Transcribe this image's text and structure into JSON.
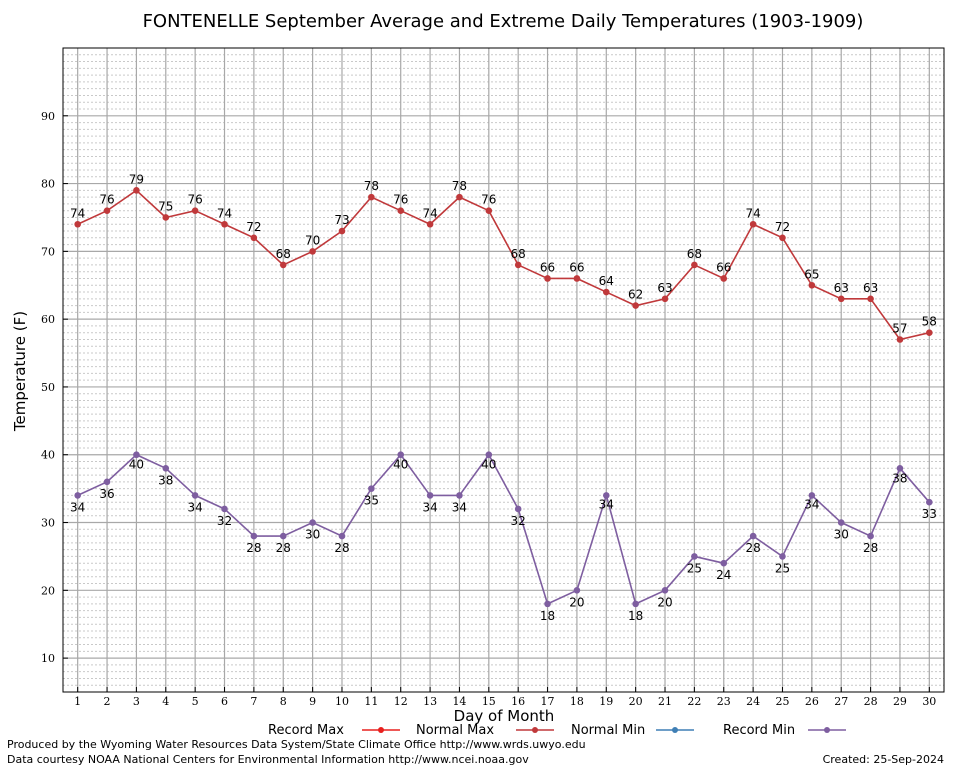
{
  "chart_data": {
    "type": "line",
    "title": "FONTENELLE September Average and Extreme Daily Temperatures (1903-1909)",
    "xlabel": "Day of Month",
    "ylabel": "Temperature (F)",
    "x": [
      1,
      2,
      3,
      4,
      5,
      6,
      7,
      8,
      9,
      10,
      11,
      12,
      13,
      14,
      15,
      16,
      17,
      18,
      19,
      20,
      21,
      22,
      23,
      24,
      25,
      26,
      27,
      28,
      29,
      30
    ],
    "xlim": [
      0.5,
      30.5
    ],
    "ylim": [
      5,
      100
    ],
    "yticks": [
      10,
      20,
      30,
      40,
      50,
      60,
      70,
      80,
      90
    ],
    "grid": true,
    "legend": [
      "Record Max",
      "Normal Max",
      "Normal Min",
      "Record Min"
    ],
    "series": [
      {
        "name": "Normal Max",
        "color": "#c0393b",
        "values": [
          74,
          76,
          79,
          75,
          76,
          74,
          72,
          68,
          70,
          73,
          78,
          76,
          74,
          78,
          76,
          68,
          66,
          66,
          64,
          62,
          63,
          68,
          66,
          74,
          72,
          65,
          63,
          63,
          57,
          58
        ]
      },
      {
        "name": "Record Min",
        "color": "#7e5ea0",
        "values": [
          34,
          36,
          40,
          38,
          34,
          32,
          28,
          28,
          30,
          28,
          35,
          40,
          34,
          34,
          40,
          32,
          18,
          20,
          34,
          18,
          20,
          25,
          24,
          28,
          25,
          34,
          30,
          28,
          38,
          33
        ]
      }
    ],
    "legend_colors": {
      "Record Max": "#e8201e",
      "Normal Max": "#c0393b",
      "Normal Min": "#3f7fb5",
      "Record Min": "#7e5ea0"
    }
  },
  "footer": {
    "line1": "Produced by the Wyoming Water Resources Data System/State Climate Office http://www.wrds.uwyo.edu",
    "line2": "Data courtesy NOAA National Centers for Environmental Information http://www.ncei.noaa.gov",
    "created": "Created: 25-Sep-2024"
  }
}
